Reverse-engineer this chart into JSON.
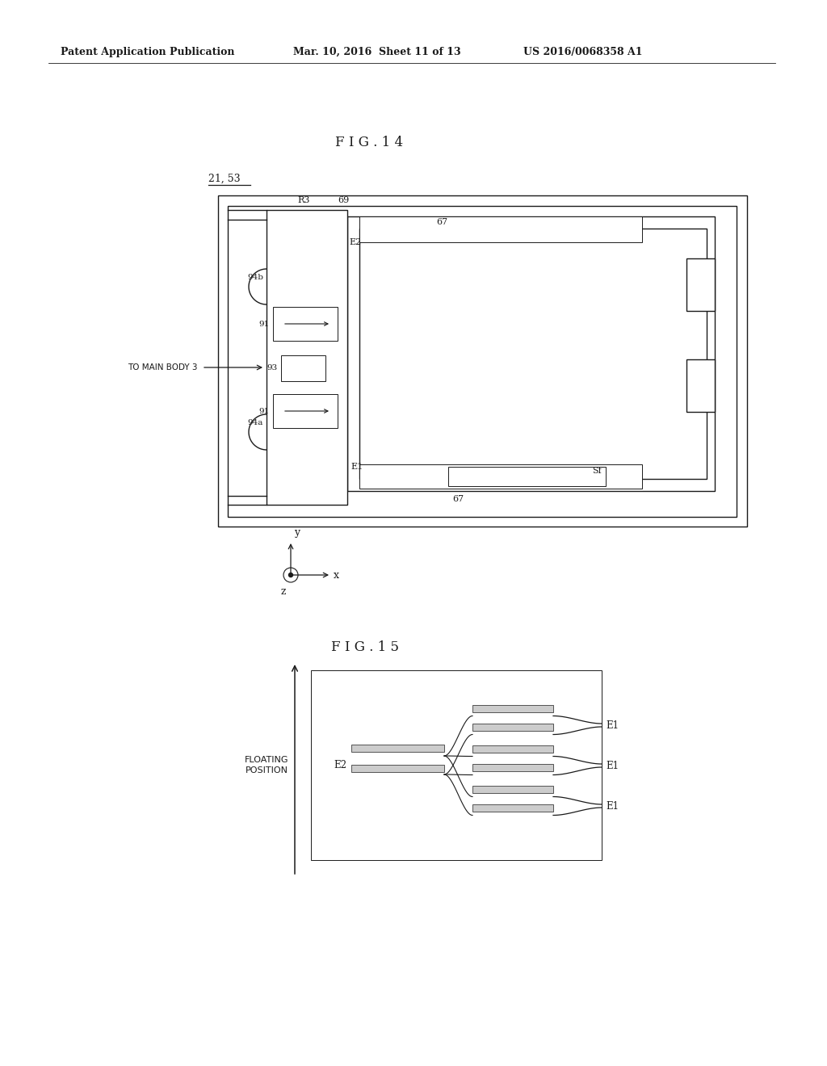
{
  "background_color": "#ffffff",
  "header_left": "Patent Application Publication",
  "header_mid": "Mar. 10, 2016  Sheet 11 of 13",
  "header_right": "US 2016/0068358 A1",
  "fig14_title": "F I G . 1 4",
  "fig15_title": "F I G . 1 5",
  "label_21_53": "21, 53",
  "color": "#1a1a1a"
}
